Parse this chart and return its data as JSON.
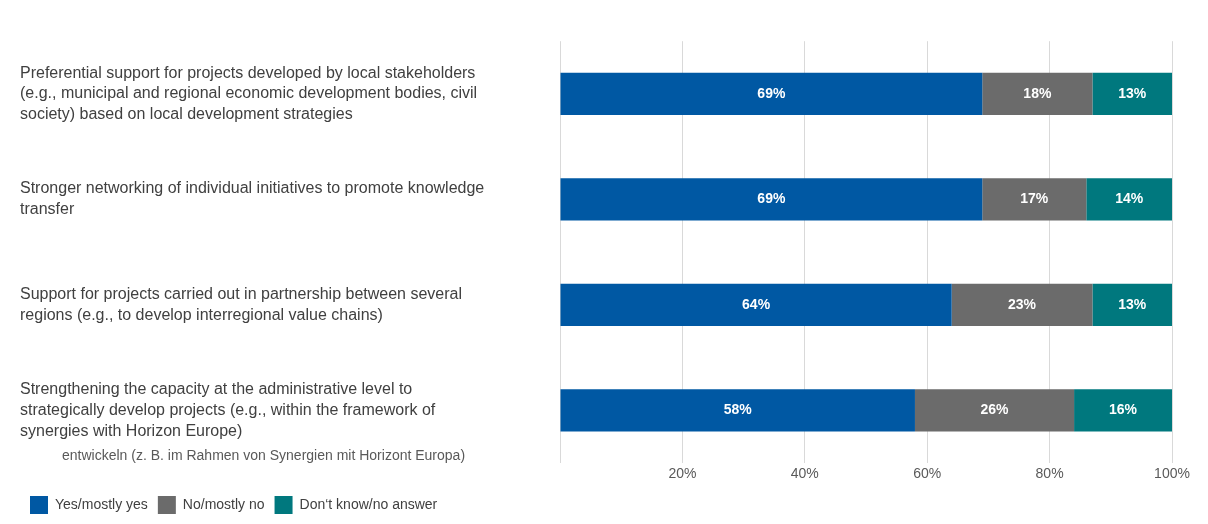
{
  "chart_data": {
    "type": "bar",
    "orientation": "horizontal",
    "stacked": true,
    "categories": [
      "Preferential support for projects developed by local stakeholders (e.g., municipal and regional economic development bodies, civil society) based on local development strategies",
      "Stronger networking of individual initiatives to promote knowledge transfer",
      "Support for projects carried out in partnership between several regions (e.g., to develop interregional value chains)",
      "Strengthening the capacity at the administrative level to strategically develop projects (e.g., within the framework of synergies with Horizon Europe)"
    ],
    "series": [
      {
        "name": "Yes/mostly yes",
        "color": "#0058a3",
        "values": [
          69,
          69,
          64,
          58
        ],
        "value_labels": [
          "69%",
          "69%",
          "64%",
          "58%"
        ]
      },
      {
        "name": "No/mostly no",
        "color": "#6b6b6b",
        "values": [
          18,
          17,
          23,
          26
        ],
        "value_labels": [
          "18%",
          "17%",
          "23%",
          "26%"
        ]
      },
      {
        "name": "Don‘t know/no answer",
        "color": "#00787e",
        "values": [
          13,
          14,
          13,
          16
        ],
        "value_labels": [
          "13%",
          "14%",
          "13%",
          "16%"
        ]
      }
    ],
    "xlim": [
      0,
      100
    ],
    "xticks": [
      {
        "value": 0,
        "label": null
      },
      {
        "value": 20,
        "label": "20%"
      },
      {
        "value": 40,
        "label": "40%"
      },
      {
        "value": 60,
        "label": "60%"
      },
      {
        "value": 80,
        "label": "80%"
      },
      {
        "value": 100,
        "label": "100%"
      }
    ],
    "grid": "x",
    "legend": "bottom left",
    "annotations": [
      "entwickeln (z. B. im Rahmen von Synergien mit Horizont Europa)"
    ]
  }
}
